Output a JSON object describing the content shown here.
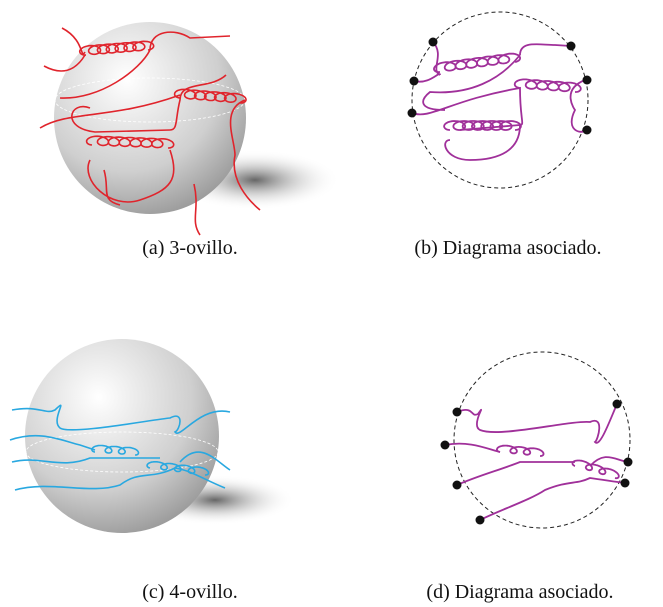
{
  "figure": {
    "panels": [
      {
        "caption": "(a) 3-ovillo."
      },
      {
        "caption": "(b) Diagrama asociado."
      },
      {
        "caption": "(c) 4-ovillo."
      },
      {
        "caption": "(d) Diagrama asociado."
      }
    ]
  }
}
